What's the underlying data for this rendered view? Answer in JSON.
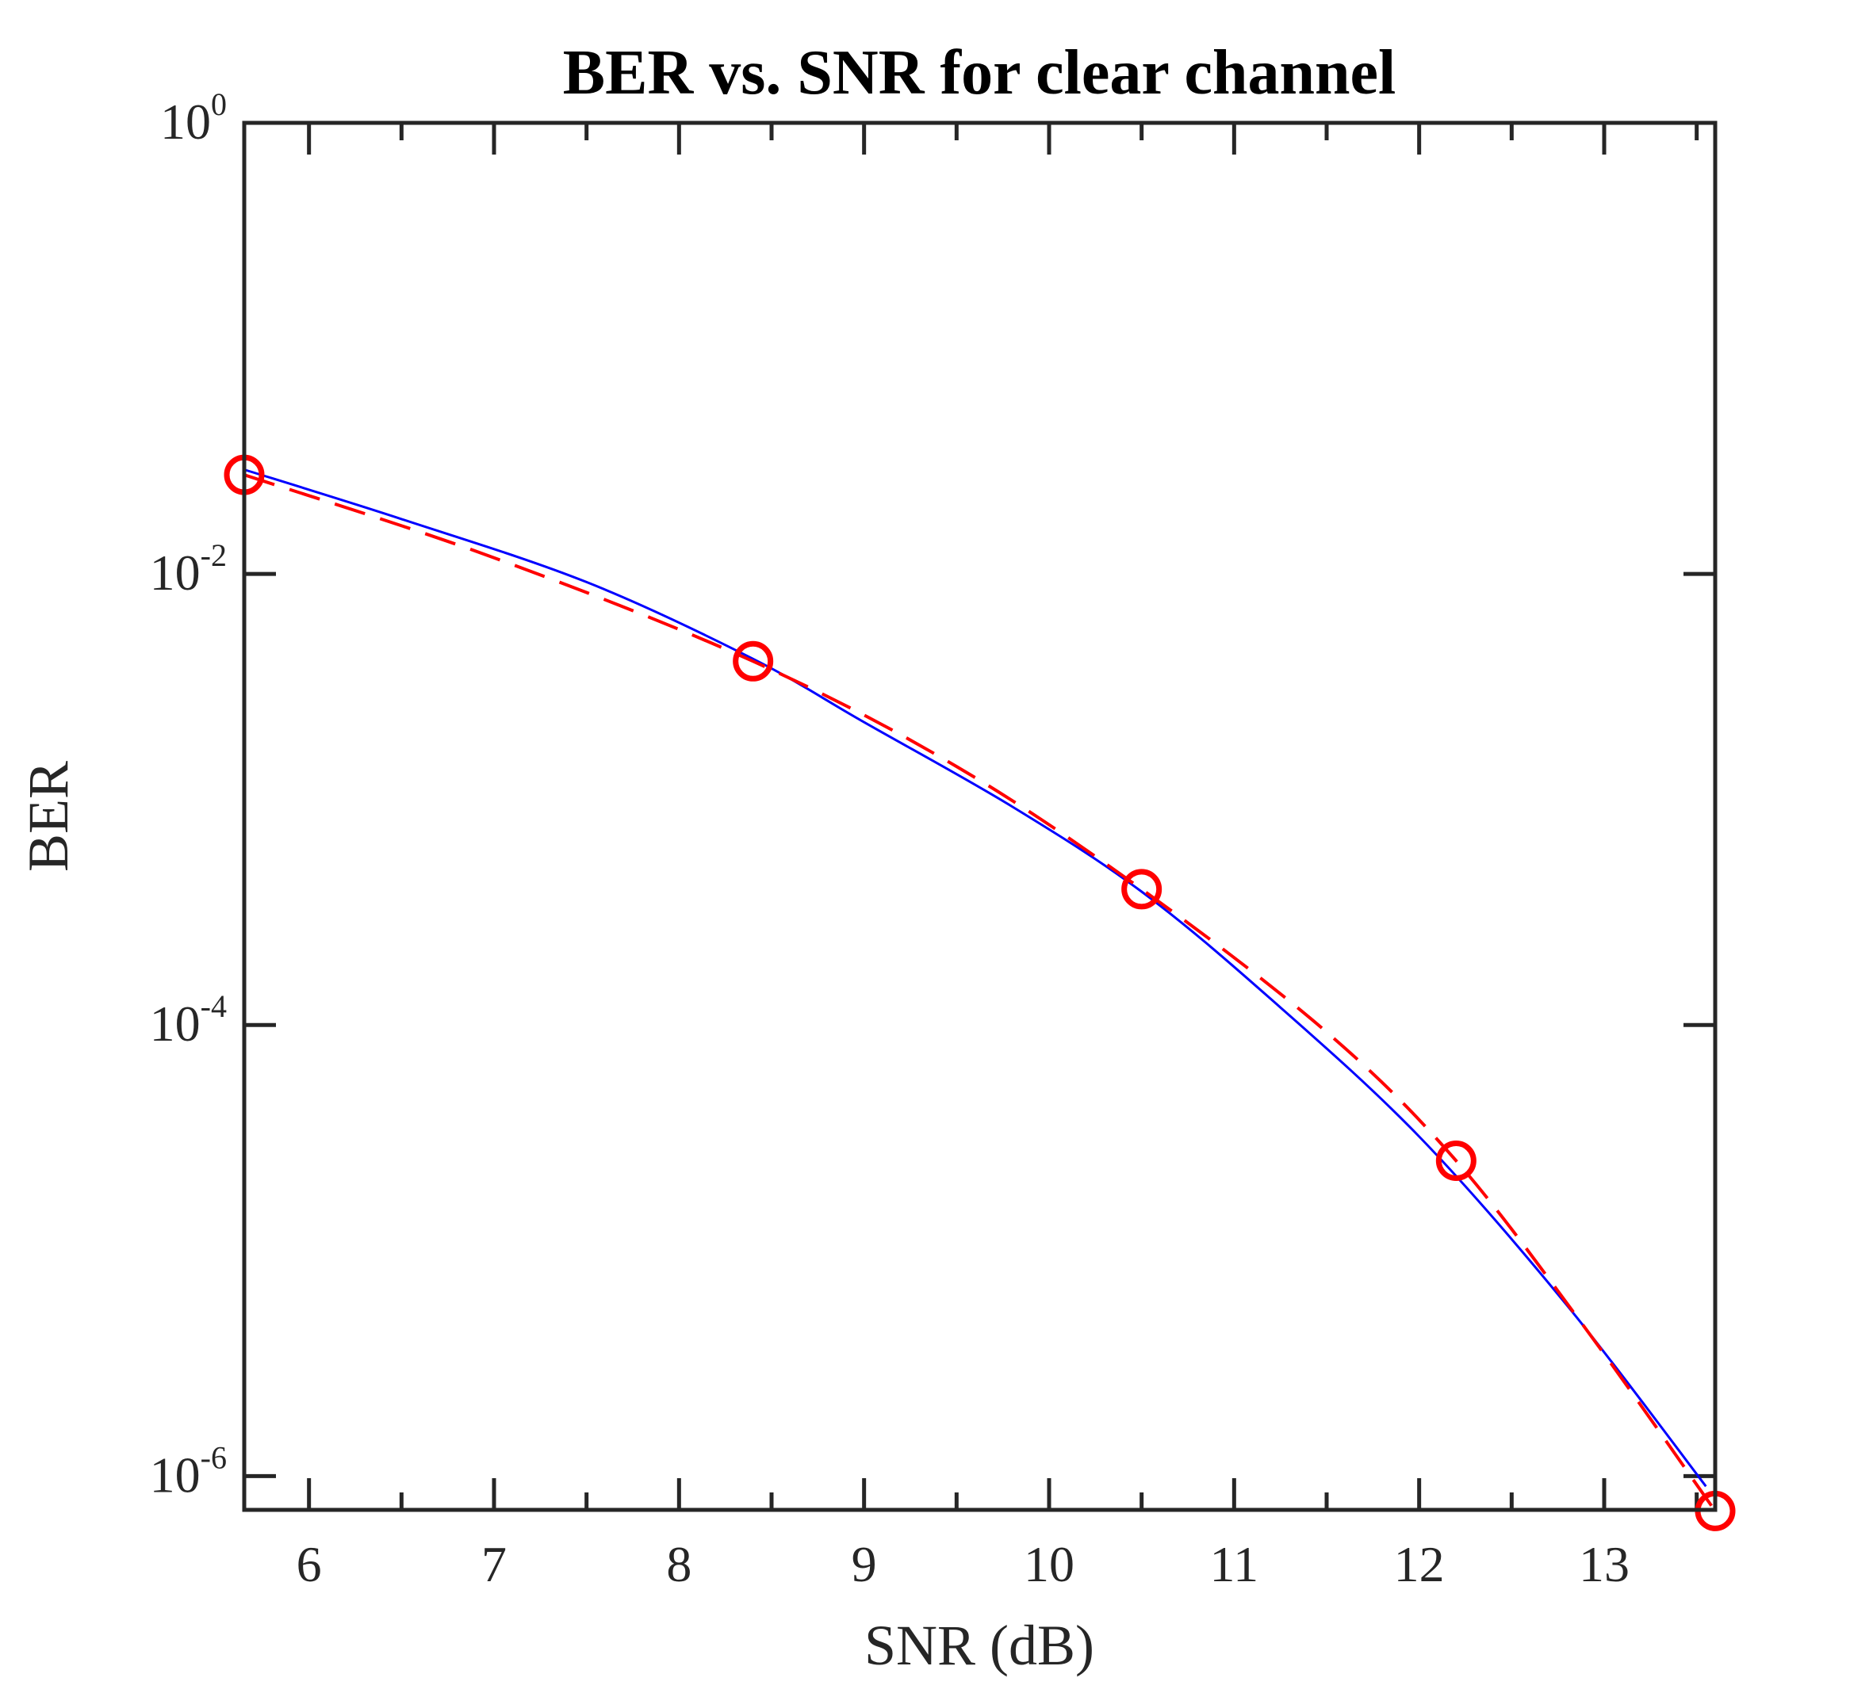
{
  "chart_data": {
    "type": "line",
    "title": "BER vs. SNR for clear channel",
    "xlabel": "SNR (dB)",
    "ylabel": "BER",
    "xlim": [
      5.65,
      13.6
    ],
    "ylim_log10": [
      -6.15,
      0
    ],
    "yscale": "log",
    "grid": false,
    "box": true,
    "x_ticks": [
      6,
      7,
      8,
      9,
      10,
      11,
      12,
      13
    ],
    "x_tick_labels": [
      "6",
      "7",
      "8",
      "9",
      "10",
      "11",
      "12",
      "13"
    ],
    "y_ticks": [
      {
        "value": 1,
        "base": "10",
        "exponent": "0"
      },
      {
        "value": 0.01,
        "base": "10",
        "exponent": "-2"
      },
      {
        "value": 0.0001,
        "base": "10",
        "exponent": "-4"
      },
      {
        "value": 1e-06,
        "base": "10",
        "exponent": "-6"
      }
    ],
    "series": [
      {
        "style": "solid",
        "color": "#0000ff",
        "x": [
          5.65,
          6.5,
          7.5,
          8.4,
          9.0,
          9.8,
          10.5,
          11.2,
          12.0,
          12.8,
          13.55
        ],
        "y": [
          0.029,
          0.0175,
          0.0092,
          0.0042,
          0.0022,
          0.00093,
          0.00039,
          0.00013,
          3.2e-05,
          5.7e-06,
          9e-07
        ]
      },
      {
        "style": "dashed",
        "color": "#ff0000",
        "x": [
          5.65,
          7.0,
          8.4,
          9.5,
          10.5,
          11.5,
          12.2,
          12.9,
          13.6
        ],
        "y": [
          0.0275,
          0.0118,
          0.0041,
          0.0014,
          0.0004,
          9.3e-05,
          2.5e-05,
          4.5e-06,
          7e-07
        ]
      },
      {
        "style": "markers",
        "marker": "circle",
        "color": "#ff0000",
        "x": [
          5.65,
          8.4,
          10.5,
          12.2,
          13.6
        ],
        "y": [
          0.0275,
          0.0041,
          0.0004,
          2.5e-05,
          7e-07
        ]
      }
    ]
  }
}
